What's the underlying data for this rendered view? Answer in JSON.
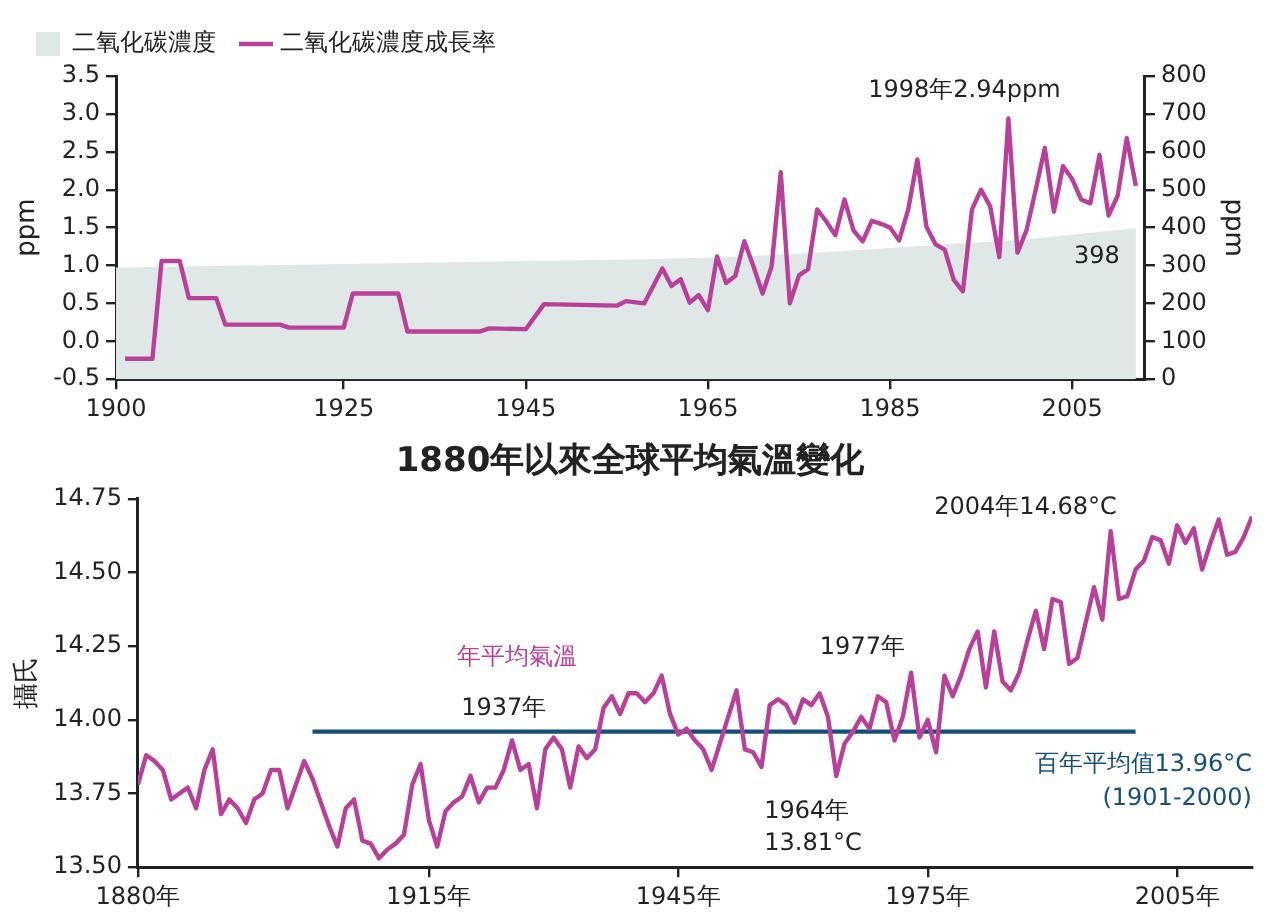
{
  "chart_data": [
    {
      "type": "line",
      "xlim": [
        1900,
        2013
      ],
      "xticks": [
        1900,
        1925,
        1945,
        1965,
        1985,
        2005
      ],
      "ylim": [
        -0.5,
        3.5
      ],
      "yticks": [
        {
          "value": -0.5,
          "label": "-0.5"
        },
        {
          "value": 0,
          "label": "0.0"
        },
        {
          "value": 0.5,
          "label": "0.5"
        },
        {
          "value": 1,
          "label": "1.0"
        },
        {
          "value": 1.5,
          "label": "1.5"
        },
        {
          "value": 2,
          "label": "2.0"
        },
        {
          "value": 2.5,
          "label": "2.5"
        },
        {
          "value": 3,
          "label": "3.0"
        },
        {
          "value": 3.5,
          "label": "3.5"
        }
      ],
      "y2lim": [
        0,
        800
      ],
      "y2ticks": [
        0,
        100,
        200,
        300,
        400,
        500,
        600,
        700,
        800
      ],
      "ylabel": "ppm",
      "y2label": "ppm",
      "grid": false,
      "legend": "top left",
      "marker": "none",
      "series": [
        {
          "name": "二氧化碳濃度",
          "type": "area",
          "axis": "y2",
          "color": "#dfe7e7",
          "x": [
            1900,
            1920,
            1940,
            1960,
            1970,
            1980,
            1990,
            2000,
            2012
          ],
          "values": [
            295,
            302,
            310,
            317,
            325,
            338,
            354,
            369,
            398
          ],
          "value_labels": [
            null,
            null,
            null,
            null,
            null,
            null,
            null,
            null,
            "398"
          ]
        },
        {
          "name": "二氧化碳濃度成長率",
          "color": "#b9409a",
          "x": [
            1901,
            1904,
            1905,
            1907,
            1908,
            1911,
            1912,
            1918,
            1919,
            1925,
            1926,
            1931,
            1932,
            1940,
            1941,
            1945,
            1947,
            1955,
            1956,
            1958,
            1960,
            1961,
            1962,
            1963,
            1964,
            1965,
            1966,
            1967,
            1968,
            1969,
            1970,
            1971,
            1972,
            1973,
            1974,
            1975,
            1976,
            1977,
            1978,
            1979,
            1980,
            1981,
            1982,
            1983,
            1984,
            1985,
            1986,
            1987,
            1988,
            1989,
            1990,
            1991,
            1992,
            1993,
            1994,
            1995,
            1996,
            1997,
            1998,
            1999,
            2000,
            2001,
            2002,
            2003,
            2004,
            2005,
            2006,
            2007,
            2008,
            2009,
            2010,
            2011,
            2012
          ],
          "values": [
            -0.23,
            -0.23,
            1.06,
            1.06,
            0.57,
            0.57,
            0.22,
            0.22,
            0.18,
            0.18,
            0.63,
            0.63,
            0.13,
            0.13,
            0.17,
            0.16,
            0.49,
            0.47,
            0.53,
            0.5,
            0.96,
            0.73,
            0.82,
            0.51,
            0.61,
            0.41,
            1.12,
            0.77,
            0.86,
            1.32,
            0.99,
            0.63,
            0.99,
            2.23,
            0.5,
            0.87,
            0.95,
            1.74,
            1.58,
            1.4,
            1.87,
            1.46,
            1.32,
            1.59,
            1.55,
            1.5,
            1.33,
            1.74,
            2.4,
            1.51,
            1.28,
            1.21,
            0.81,
            0.66,
            1.74,
            2.0,
            1.78,
            1.11,
            2.94,
            1.17,
            1.47,
            2.0,
            2.55,
            1.71,
            2.31,
            2.14,
            1.87,
            1.82,
            2.46,
            1.66,
            1.92,
            2.68,
            2.05
          ]
        }
      ],
      "annotations": [
        {
          "text": "1998年2.94ppm",
          "x": 1998,
          "y": 2.94
        }
      ]
    },
    {
      "type": "line",
      "title": "1880年以來全球平均氣溫變化",
      "ylabel": "攝氏",
      "xlim": [
        1880,
        2014
      ],
      "xticks": [
        {
          "value": 1880,
          "label": "1880年"
        },
        {
          "value": 1915,
          "label": "1915年"
        },
        {
          "value": 1945,
          "label": "1945年"
        },
        {
          "value": 1975,
          "label": "1975年"
        },
        {
          "value": 2005,
          "label": "2005年"
        }
      ],
      "ylim": [
        13.5,
        14.75
      ],
      "yticks": [
        {
          "value": 13.5,
          "label": "13.50"
        },
        {
          "value": 13.75,
          "label": "13.75"
        },
        {
          "value": 14,
          "label": "14.00"
        },
        {
          "value": 14.25,
          "label": "14.25"
        },
        {
          "value": 14.5,
          "label": "14.50"
        },
        {
          "value": 14.75,
          "label": "14.75"
        }
      ],
      "grid": false,
      "legend": false,
      "marker": "none",
      "series": [
        {
          "name": "年平均氣溫",
          "color": "#b9409a",
          "x": [
            1880,
            1881,
            1882,
            1883,
            1884,
            1885,
            1886,
            1887,
            1888,
            1889,
            1890,
            1891,
            1892,
            1893,
            1894,
            1895,
            1896,
            1897,
            1898,
            1899,
            1900,
            1901,
            1902,
            1903,
            1904,
            1905,
            1906,
            1907,
            1908,
            1909,
            1910,
            1911,
            1912,
            1913,
            1914,
            1915,
            1916,
            1917,
            1918,
            1919,
            1920,
            1921,
            1922,
            1923,
            1924,
            1925,
            1926,
            1927,
            1928,
            1929,
            1930,
            1931,
            1932,
            1933,
            1934,
            1935,
            1936,
            1937,
            1938,
            1939,
            1940,
            1941,
            1942,
            1943,
            1944,
            1945,
            1946,
            1947,
            1948,
            1949,
            1950,
            1951,
            1952,
            1953,
            1954,
            1955,
            1956,
            1957,
            1958,
            1959,
            1960,
            1961,
            1962,
            1963,
            1964,
            1965,
            1966,
            1967,
            1968,
            1969,
            1970,
            1971,
            1972,
            1973,
            1974,
            1975,
            1976,
            1977,
            1978,
            1979,
            1980,
            1981,
            1982,
            1983,
            1984,
            1985,
            1986,
            1987,
            1988,
            1989,
            1990,
            1991,
            1992,
            1993,
            1994,
            1995,
            1996,
            1997,
            1998,
            1999,
            2000,
            2001,
            2002,
            2003,
            2004,
            2005,
            2006,
            2007,
            2008,
            2009,
            2010,
            2011,
            2012,
            2013,
            2014
          ],
          "values": [
            13.78,
            13.88,
            13.86,
            13.83,
            13.73,
            13.75,
            13.77,
            13.7,
            13.83,
            13.9,
            13.68,
            13.73,
            13.7,
            13.65,
            13.73,
            13.75,
            13.83,
            13.83,
            13.7,
            13.78,
            13.86,
            13.8,
            13.72,
            13.64,
            13.57,
            13.7,
            13.73,
            13.59,
            13.58,
            13.53,
            13.56,
            13.58,
            13.61,
            13.78,
            13.85,
            13.66,
            13.57,
            13.69,
            13.72,
            13.74,
            13.81,
            13.72,
            13.77,
            13.77,
            13.83,
            13.93,
            13.83,
            13.85,
            13.7,
            13.9,
            13.94,
            13.9,
            13.77,
            13.91,
            13.87,
            13.9,
            14.04,
            14.08,
            14.02,
            14.09,
            14.09,
            14.06,
            14.09,
            14.15,
            14.02,
            13.95,
            13.97,
            13.93,
            13.9,
            13.83,
            13.92,
            14.01,
            14.1,
            13.9,
            13.89,
            13.84,
            14.05,
            14.07,
            14.05,
            13.99,
            14.07,
            14.05,
            14.09,
            14.01,
            13.81,
            13.92,
            13.96,
            14.01,
            13.97,
            14.08,
            14.06,
            13.93,
            14.01,
            14.16,
            13.94,
            14.0,
            13.89,
            14.15,
            14.08,
            14.15,
            14.24,
            14.3,
            14.11,
            14.3,
            14.13,
            14.1,
            14.16,
            14.27,
            14.37,
            14.24,
            14.41,
            14.4,
            14.19,
            14.21,
            14.33,
            14.45,
            14.34,
            14.64,
            14.41,
            14.42,
            14.51,
            14.54,
            14.62,
            14.61,
            14.53,
            14.66,
            14.6,
            14.65,
            14.51,
            14.6,
            14.68,
            14.56,
            14.57,
            14.62,
            14.69
          ]
        },
        {
          "name": "百年平均值13.96°C\n(1901-2000)",
          "color": "#144f7a",
          "x": [
            1901,
            2000
          ],
          "values": [
            13.96,
            13.96
          ]
        }
      ],
      "annotations": [
        {
          "text": "1937年",
          "x": 1937,
          "y": 14.08
        },
        {
          "text": "1977年",
          "x": 1977,
          "y": 14.15
        },
        {
          "text": "1964年\n13.81°C",
          "x": 1964,
          "y": 13.81
        },
        {
          "text": "2004年14.68°C",
          "x": 2004,
          "y": 14.68
        }
      ]
    }
  ]
}
